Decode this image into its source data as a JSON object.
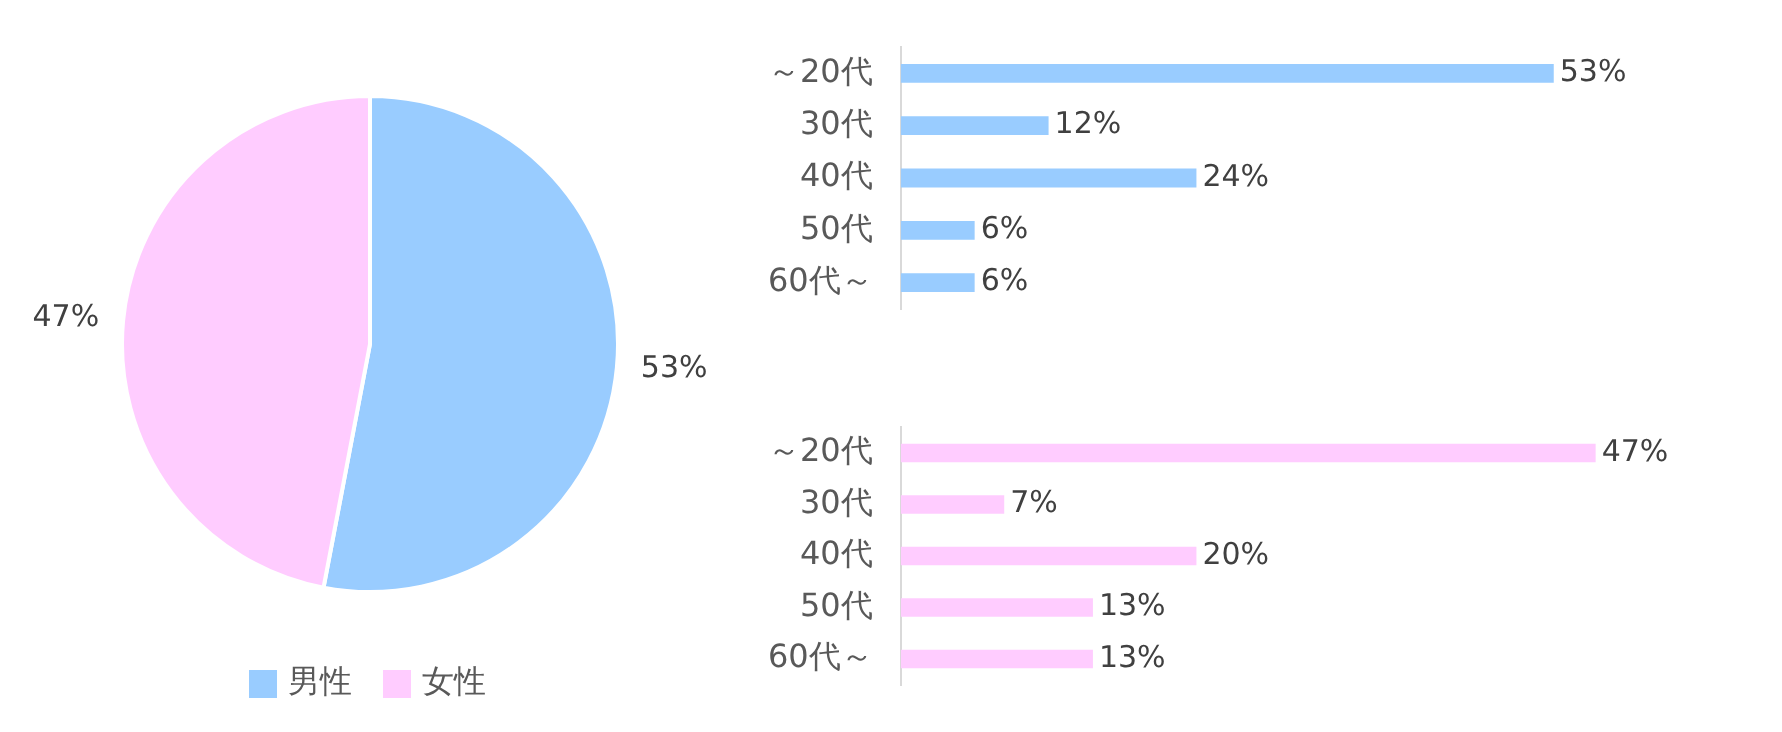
{
  "chart_data": [
    {
      "type": "pie",
      "categories": [
        "男性",
        "女性"
      ],
      "values": [
        53,
        47
      ],
      "colors": [
        "#99ccff",
        "#ffccff"
      ],
      "value_labels": [
        "53%",
        "47%"
      ],
      "legend": "bottom"
    },
    {
      "type": "bar",
      "orientation": "horizontal",
      "categories": [
        "～20代",
        "30代",
        "40代",
        "50代",
        "60代～"
      ],
      "values": [
        53,
        12,
        24,
        6,
        6
      ],
      "color": "#99ccff",
      "value_labels": [
        "53%",
        "12%",
        "24%",
        "6%",
        "6%"
      ],
      "tick_labels": "y"
    },
    {
      "type": "bar",
      "orientation": "horizontal",
      "categories": [
        "～20代",
        "30代",
        "40代",
        "50代",
        "60代～"
      ],
      "values": [
        47,
        7,
        20,
        13,
        13
      ],
      "color": "#ffccff",
      "value_labels": [
        "47%",
        "7%",
        "20%",
        "13%",
        "13%"
      ],
      "tick_labels": "y"
    }
  ]
}
